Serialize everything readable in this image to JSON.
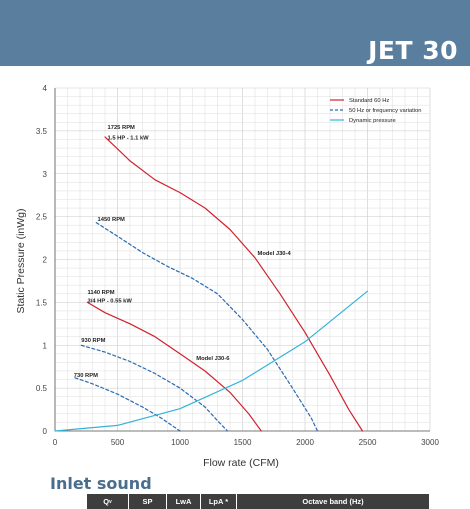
{
  "header": {
    "title": "JET 30"
  },
  "section": {
    "title": "Inlet sound"
  },
  "table": {
    "headers": {
      "q_main": "Q",
      "q_sub": "v",
      "sp": "SP",
      "lwa": "LwA",
      "lpa": "LpA *",
      "octave": "Octave band (Hz)"
    }
  },
  "colors": {
    "header_bg": "#5a7f9e",
    "standard": "#d0232e",
    "frequency": "#2a6bb0",
    "dynamic": "#35b3d9",
    "grid": "#d6d6d6"
  },
  "chart_data": {
    "type": "line",
    "xlabel": "Flow rate (CFM)",
    "ylabel": "Static Pressure (inWg)",
    "xlim": [
      0,
      3000
    ],
    "ylim": [
      0,
      4
    ],
    "xticks": [
      0,
      500,
      1000,
      1500,
      2000,
      2500,
      3000
    ],
    "yticks": [
      0,
      0.5,
      1,
      1.5,
      2,
      2.5,
      3,
      3.5,
      4
    ],
    "grid": true,
    "legend_position": "top-right",
    "legend": [
      {
        "label": "Standard 60 Hz",
        "style": "standard"
      },
      {
        "label": "50 Hz or frequency variation",
        "style": "frequency"
      },
      {
        "label": "Dynamic pressure",
        "style": "dynamic"
      }
    ],
    "series": [
      {
        "style": "standard",
        "x": [
          400,
          600,
          800,
          1000,
          1200,
          1400,
          1600,
          1800,
          2000,
          2200,
          2350,
          2460
        ],
        "y": [
          3.43,
          3.15,
          2.93,
          2.78,
          2.6,
          2.35,
          2.02,
          1.6,
          1.15,
          0.65,
          0.25,
          0.0
        ]
      },
      {
        "style": "frequency",
        "x": [
          330,
          500,
          700,
          900,
          1100,
          1300,
          1500,
          1700,
          1900,
          2050,
          2100
        ],
        "y": [
          2.43,
          2.27,
          2.08,
          1.92,
          1.78,
          1.6,
          1.3,
          0.95,
          0.5,
          0.15,
          0.0
        ]
      },
      {
        "style": "standard",
        "x": [
          260,
          400,
          600,
          800,
          1000,
          1200,
          1400,
          1550,
          1650
        ],
        "y": [
          1.5,
          1.38,
          1.25,
          1.1,
          0.9,
          0.7,
          0.45,
          0.2,
          0.0
        ]
      },
      {
        "style": "frequency",
        "x": [
          210,
          400,
          600,
          800,
          1000,
          1200,
          1300,
          1380
        ],
        "y": [
          1.0,
          0.92,
          0.81,
          0.67,
          0.5,
          0.28,
          0.12,
          0.0
        ]
      },
      {
        "style": "frequency",
        "x": [
          160,
          300,
          500,
          700,
          850,
          950,
          1000
        ],
        "y": [
          0.62,
          0.55,
          0.43,
          0.28,
          0.15,
          0.05,
          0.0
        ]
      },
      {
        "style": "dynamic",
        "x": [
          0,
          500,
          1000,
          1500,
          2000,
          2500
        ],
        "y": [
          0.0,
          0.065,
          0.26,
          0.59,
          1.04,
          1.63
        ]
      }
    ],
    "annotations": [
      {
        "text": "1725 RPM",
        "x": 420,
        "y": 3.52
      },
      {
        "text": "1.5 HP - 1.1 kW",
        "x": 420,
        "y": 3.4
      },
      {
        "text": "1450 RPM",
        "x": 340,
        "y": 2.45
      },
      {
        "text": "1140 RPM",
        "x": 260,
        "y": 1.6
      },
      {
        "text": "3/4 HP - 0.55 kW",
        "x": 260,
        "y": 1.5
      },
      {
        "text": "930 RPM",
        "x": 210,
        "y": 1.04
      },
      {
        "text": "730 RPM",
        "x": 150,
        "y": 0.63
      },
      {
        "text": "Model J30-4",
        "x": 1620,
        "y": 2.05
      },
      {
        "text": "Model J30-6",
        "x": 1130,
        "y": 0.83
      }
    ]
  }
}
